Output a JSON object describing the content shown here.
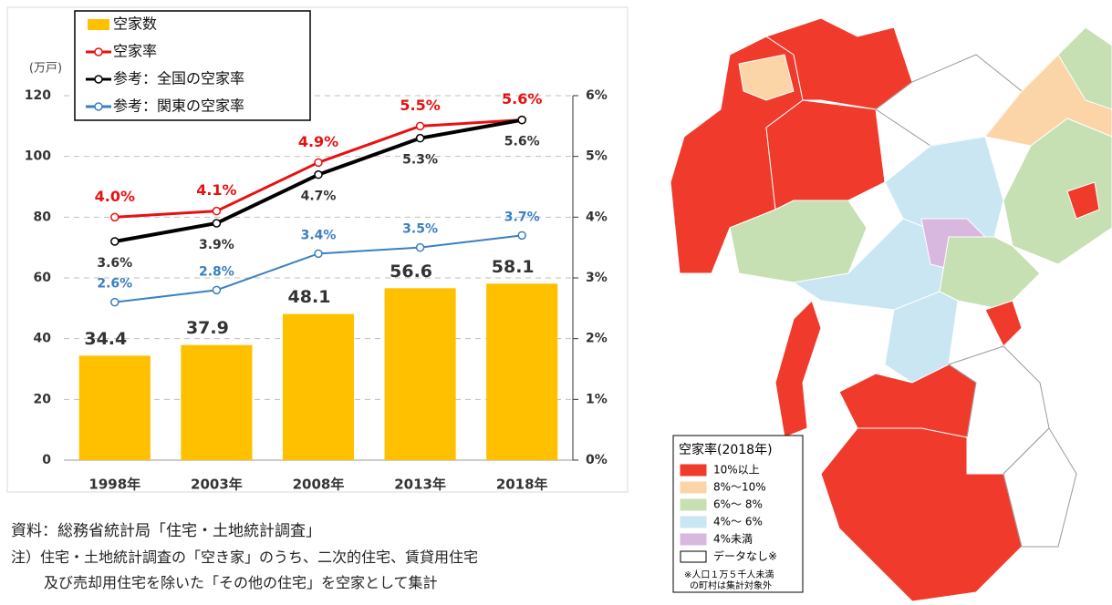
{
  "chart_data": {
    "type": "bar",
    "y_label": "(万戸)",
    "categories": [
      "1998年",
      "2003年",
      "2008年",
      "2013年",
      "2018年"
    ],
    "series": [
      {
        "name": "空家数",
        "type": "bar",
        "color": "#ffc000",
        "values": [
          34.4,
          37.9,
          48.1,
          56.6,
          58.1
        ]
      },
      {
        "name": "空家率",
        "type": "line",
        "axis": "y2",
        "color": "#e81010",
        "values": [
          4.0,
          4.1,
          4.9,
          5.5,
          5.6
        ],
        "value_labels": [
          "4.0%",
          "4.1%",
          "4.9%",
          "5.5%",
          "5.6%"
        ]
      },
      {
        "name": "参考：全国の空家率",
        "type": "line",
        "axis": "y2",
        "color": "#000000",
        "values": [
          3.6,
          3.9,
          4.7,
          5.3,
          5.6
        ],
        "value_labels": [
          "3.6%",
          "3.9%",
          "4.7%",
          "5.3%",
          "5.6%"
        ]
      },
      {
        "name": "参考：関東の空家率",
        "type": "line",
        "axis": "y2",
        "color": "#3a7fc1",
        "values": [
          2.6,
          2.8,
          3.4,
          3.5,
          3.7
        ],
        "value_labels": [
          "2.6%",
          "2.8%",
          "3.4%",
          "3.5%",
          "3.7%"
        ]
      }
    ],
    "ylim": [
      0,
      120
    ],
    "yticks": [
      0,
      20,
      40,
      60,
      80,
      100,
      120
    ],
    "y2lim": [
      0,
      6
    ],
    "y2ticks": [
      {
        "value": 0,
        "label": "0%"
      },
      {
        "value": 1,
        "label": "1%"
      },
      {
        "value": 2,
        "label": "2%"
      },
      {
        "value": 3,
        "label": "3%"
      },
      {
        "value": 4,
        "label": "4%"
      },
      {
        "value": 5,
        "label": "5%"
      },
      {
        "value": 6,
        "label": "6%"
      }
    ],
    "grid": true,
    "legend": "top-left"
  },
  "notes": [
    "資料：総務省統計局「住宅・土地統計調査」",
    "注）住宅・土地統計調査の「空き家」のうち、二次的住宅、賃貸用住宅",
    "及び売却用住宅を除いた「その他の住宅」を空家として集計"
  ],
  "map": {
    "legend": {
      "title": "空家率(2018年)",
      "items": [
        {
          "label": "10%以上",
          "color": "#ef3a2c"
        },
        {
          "label": "8%～10%",
          "color": "#fbd5a8"
        },
        {
          "label": "6%～ 8%",
          "color": "#c6e0b4"
        },
        {
          "label": "4%～ 6%",
          "color": "#c9e6f2"
        },
        {
          "label": "4%未満",
          "color": "#d9b8e0"
        },
        {
          "label": "データなし※",
          "color": "#ffffff"
        }
      ],
      "footnote": [
        "※人口１万５千人未満",
        "の町村は集計対象外"
      ]
    }
  }
}
